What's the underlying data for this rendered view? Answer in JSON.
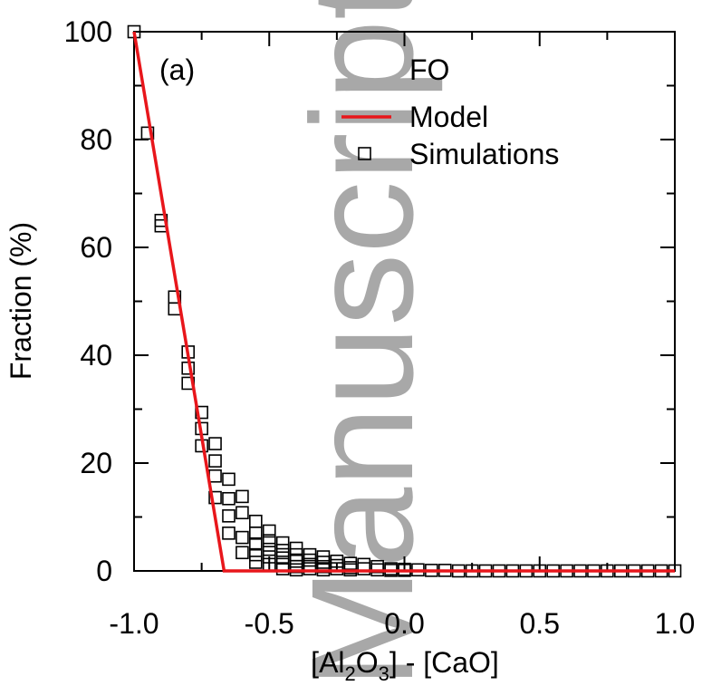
{
  "chart_data": {
    "type": "scatter",
    "panel_label": "(a)",
    "legend_title": "FO",
    "xlabel_parts": [
      "[Al",
      "2",
      "O",
      "3",
      "] - [CaO]"
    ],
    "ylabel": "Fraction (%)",
    "xlim": [
      -1.0,
      1.0
    ],
    "ylim": [
      0,
      100
    ],
    "x_ticks": [
      -1.0,
      -0.5,
      0.0,
      0.5,
      1.0
    ],
    "x_tick_labels": [
      "-1.0",
      "-0.5",
      "0.0",
      "0.5",
      "1.0"
    ],
    "y_ticks": [
      0,
      20,
      40,
      60,
      80,
      100
    ],
    "y_tick_labels": [
      "0",
      "20",
      "40",
      "60",
      "80",
      "100"
    ],
    "grid": false,
    "legend_position": "top-right",
    "watermark": "Manuscript",
    "model": {
      "name": "Model",
      "color": "#e8161b",
      "x": [
        -1.0,
        -0.667,
        1.0
      ],
      "y": [
        100,
        0,
        0
      ]
    },
    "simulations": {
      "name": "Simulations",
      "color": "#000000",
      "marker": "open-square",
      "points": [
        [
          -1.0,
          100
        ],
        [
          -0.95,
          81.2
        ],
        [
          -0.9,
          65
        ],
        [
          -0.9,
          64
        ],
        [
          -0.85,
          50.8
        ],
        [
          -0.85,
          48.6
        ],
        [
          -0.8,
          40.6
        ],
        [
          -0.8,
          37.6
        ],
        [
          -0.8,
          34.8
        ],
        [
          -0.75,
          29.4
        ],
        [
          -0.75,
          26.4
        ],
        [
          -0.75,
          23.2
        ],
        [
          -0.7,
          23.6
        ],
        [
          -0.7,
          20.4
        ],
        [
          -0.7,
          17.6
        ],
        [
          -0.7,
          13.6
        ],
        [
          -0.65,
          17
        ],
        [
          -0.65,
          13.4
        ],
        [
          -0.65,
          10.2
        ],
        [
          -0.65,
          7
        ],
        [
          -0.6,
          13.8
        ],
        [
          -0.6,
          10.8
        ],
        [
          -0.6,
          6.2
        ],
        [
          -0.6,
          3.4
        ],
        [
          -0.55,
          9.2
        ],
        [
          -0.55,
          7
        ],
        [
          -0.55,
          5
        ],
        [
          -0.55,
          3
        ],
        [
          -0.55,
          1.6
        ],
        [
          -0.5,
          7.4
        ],
        [
          -0.5,
          5.6
        ],
        [
          -0.5,
          4
        ],
        [
          -0.5,
          2.6
        ],
        [
          -0.5,
          1.2
        ],
        [
          -0.45,
          5.2
        ],
        [
          -0.45,
          3.8
        ],
        [
          -0.45,
          2.4
        ],
        [
          -0.45,
          1.2
        ],
        [
          -0.45,
          0.4
        ],
        [
          -0.4,
          4.2
        ],
        [
          -0.4,
          3
        ],
        [
          -0.4,
          1.8
        ],
        [
          -0.4,
          0.8
        ],
        [
          -0.4,
          0.2
        ],
        [
          -0.35,
          3
        ],
        [
          -0.35,
          2
        ],
        [
          -0.35,
          1.2
        ],
        [
          -0.35,
          0.4
        ],
        [
          -0.3,
          2.6
        ],
        [
          -0.3,
          1.6
        ],
        [
          -0.3,
          0.8
        ],
        [
          -0.3,
          0.2
        ],
        [
          -0.25,
          1.8
        ],
        [
          -0.25,
          1
        ],
        [
          -0.25,
          0.4
        ],
        [
          -0.2,
          1.4
        ],
        [
          -0.2,
          0.6
        ],
        [
          -0.2,
          0.2
        ],
        [
          -0.15,
          1.2
        ],
        [
          -0.15,
          0.4
        ],
        [
          -0.1,
          0.8
        ],
        [
          -0.1,
          0.2
        ],
        [
          -0.05,
          0.4
        ],
        [
          -0.05,
          0.1
        ],
        [
          0.0,
          0.3
        ],
        [
          0.0,
          0.1
        ],
        [
          0.05,
          0.2
        ],
        [
          0.1,
          0.1
        ],
        [
          0.15,
          0.1
        ],
        [
          0.2,
          0.0
        ],
        [
          0.25,
          0.0
        ],
        [
          0.3,
          0.0
        ],
        [
          0.35,
          0.0
        ],
        [
          0.4,
          0.0
        ],
        [
          0.45,
          0.0
        ],
        [
          0.5,
          0.0
        ],
        [
          0.55,
          0.0
        ],
        [
          0.6,
          0.0
        ],
        [
          0.65,
          0.0
        ],
        [
          0.7,
          0.0
        ],
        [
          0.75,
          0.0
        ],
        [
          0.8,
          0.0
        ],
        [
          0.85,
          0.0
        ],
        [
          0.9,
          0.0
        ],
        [
          0.95,
          0.0
        ],
        [
          1.0,
          0.0
        ]
      ]
    }
  }
}
